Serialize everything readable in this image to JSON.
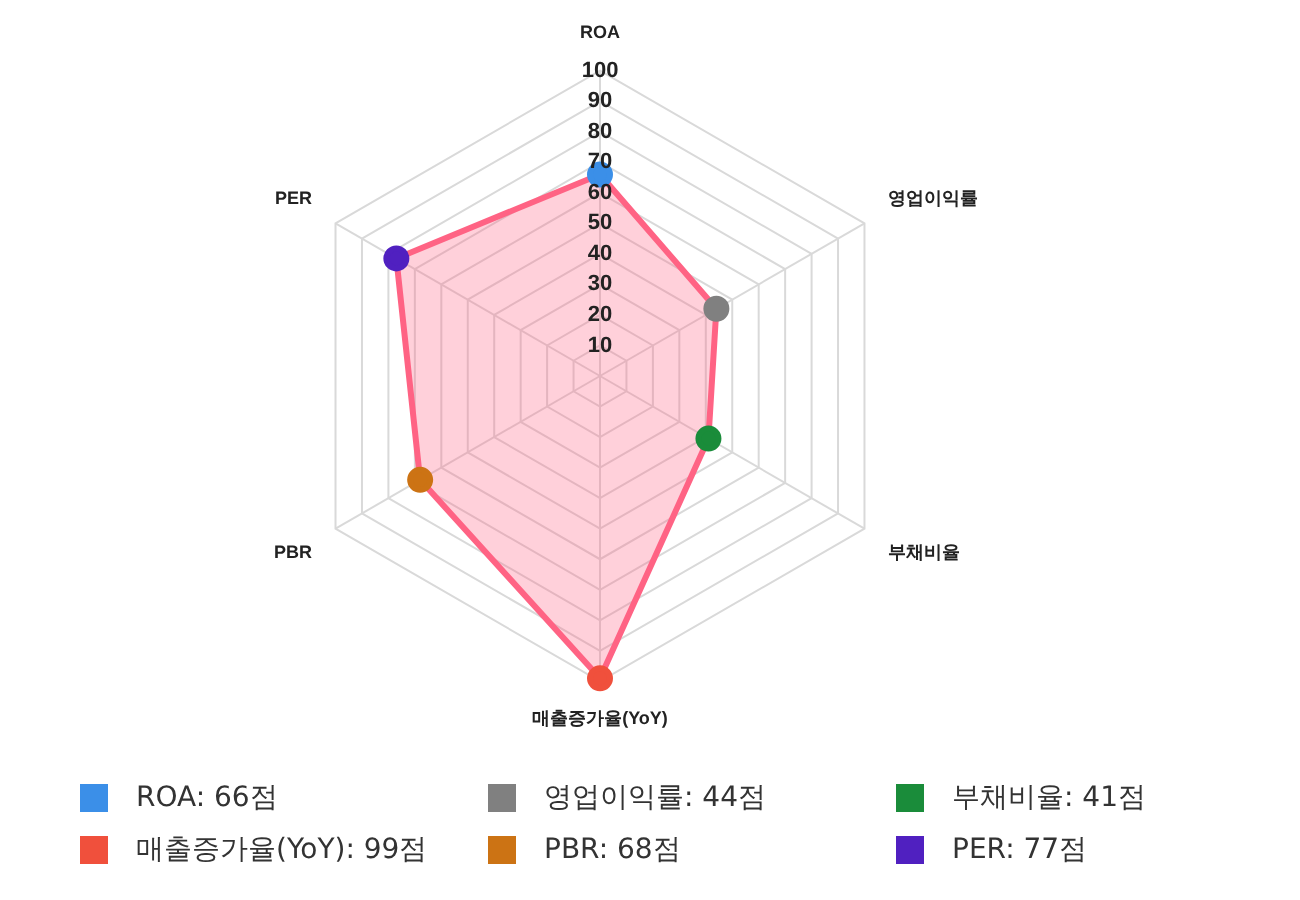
{
  "chart_data": {
    "type": "radar",
    "categories": [
      "ROA",
      "영업이익률",
      "부채비율",
      "매출증가율(YoY)",
      "PBR",
      "PER"
    ],
    "values": [
      66,
      44,
      41,
      99,
      68,
      77
    ],
    "color": "#ff6384",
    "colors": [
      "#3b8fe8",
      "#808080",
      "#1a8c3a",
      "#f0503c",
      "#cc7314",
      "#5020c0"
    ],
    "annotations": [
      "ROA: 66점",
      "영업이익률: 44점",
      "부채비율: 41점",
      "매출증가율(YoY): 99점",
      "PBR: 68점",
      "PER: 77점"
    ],
    "ylim": [
      0,
      100
    ],
    "yticks": [
      10,
      20,
      30,
      40,
      50,
      60,
      70,
      80,
      90,
      100
    ],
    "grid": true,
    "marker": "circle"
  }
}
